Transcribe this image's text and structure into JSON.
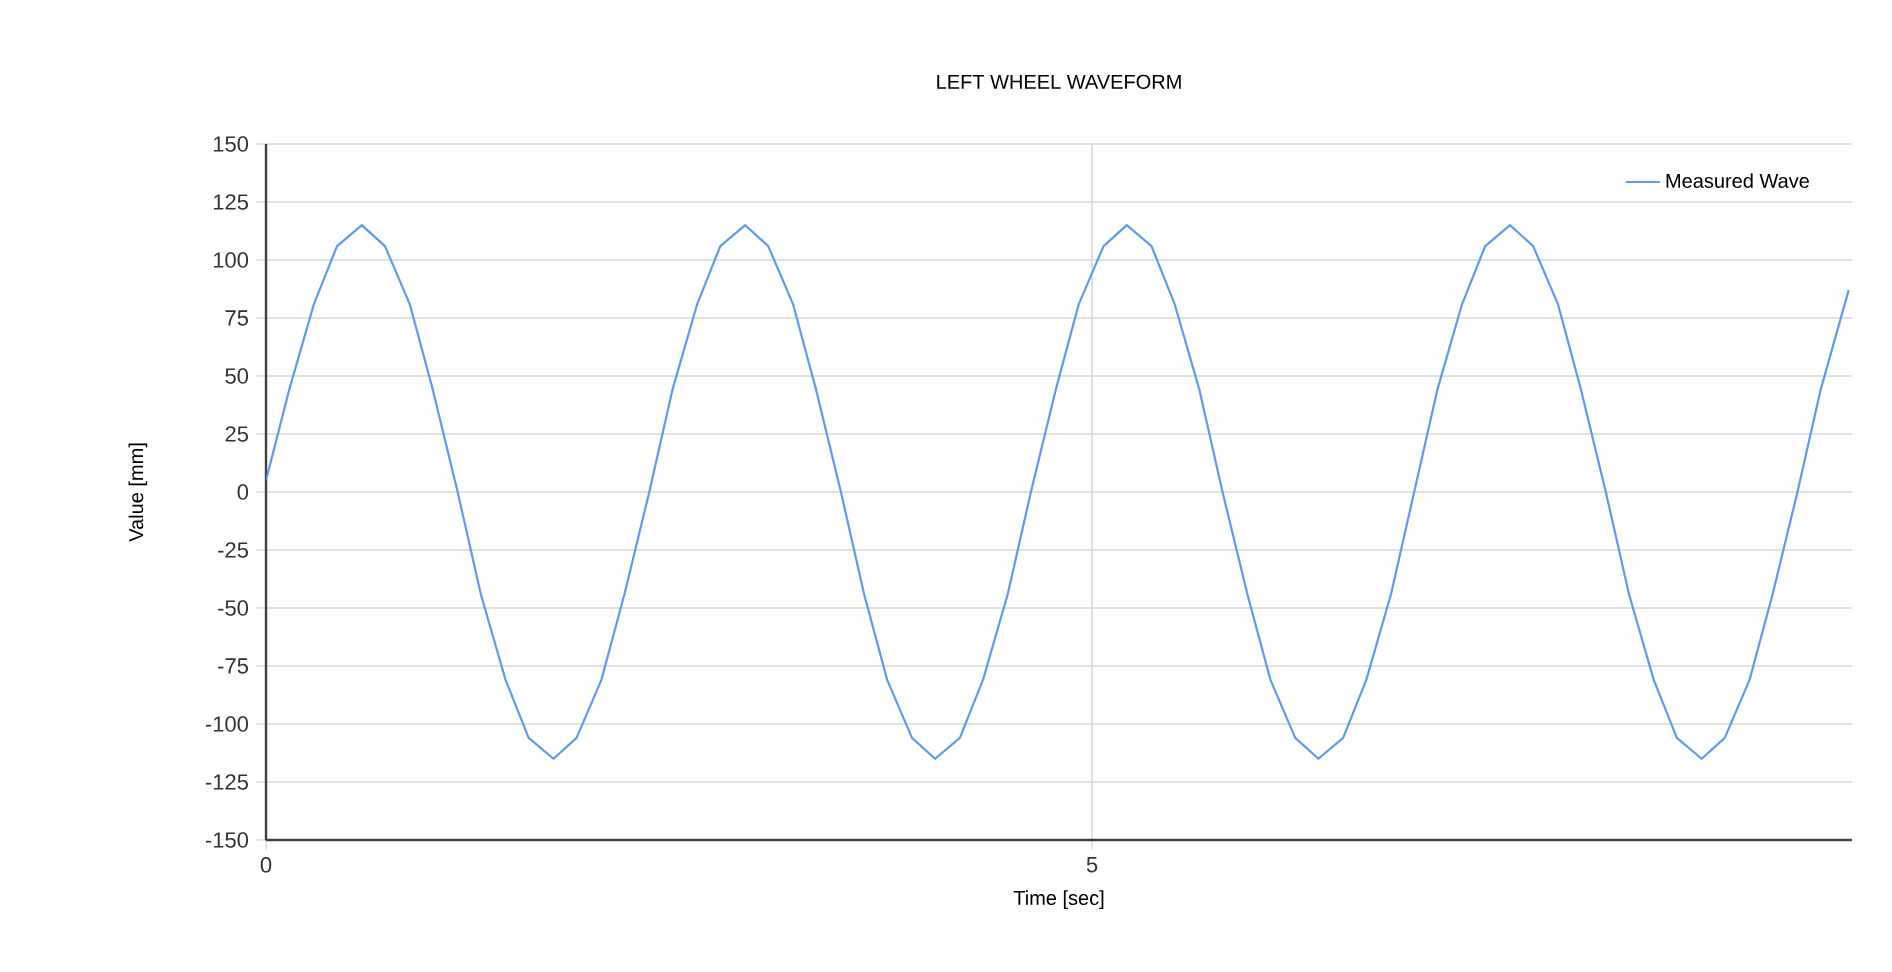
{
  "chart_data": {
    "type": "line",
    "title": "LEFT WHEEL WAVEFORM",
    "xlabel": "Time [sec]",
    "ylabel": "Value [mm]",
    "xlim": [
      0,
      9.6
    ],
    "ylim": [
      -150,
      150
    ],
    "xticks": [
      0,
      5
    ],
    "yticks": [
      -150,
      -125,
      -100,
      -75,
      -50,
      -25,
      0,
      25,
      50,
      75,
      100,
      125,
      150
    ],
    "grid": true,
    "legend": "top right",
    "marker": "none",
    "line_style": "solid",
    "x": [
      0.0,
      0.14,
      0.29,
      0.43,
      0.58,
      0.72,
      0.87,
      1.01,
      1.16,
      1.3,
      1.45,
      1.59,
      1.74,
      1.88,
      2.03,
      2.17,
      2.32,
      2.46,
      2.61,
      2.75,
      2.9,
      3.04,
      3.19,
      3.33,
      3.48,
      3.62,
      3.76,
      3.91,
      4.05,
      4.2,
      4.34,
      4.49,
      4.63,
      4.78,
      4.92,
      5.07,
      5.21,
      5.36,
      5.5,
      5.65,
      5.79,
      5.94,
      6.08,
      6.23,
      6.37,
      6.52,
      6.66,
      6.81,
      6.95,
      7.09,
      7.24,
      7.38,
      7.53,
      7.67,
      7.82,
      7.96,
      8.11,
      8.25,
      8.4,
      8.54,
      8.69,
      8.83,
      8.98,
      9.12,
      9.27,
      9.41,
      9.58
    ],
    "series": [
      {
        "name": "Measured Wave",
        "color": "#5b9bf0",
        "values": [
          5,
          44,
          81,
          106,
          115,
          106,
          81,
          44,
          0,
          -44,
          -81,
          -106,
          -115,
          -106,
          -81,
          -44,
          0,
          44,
          81,
          106,
          115,
          106,
          81,
          44,
          0,
          -44,
          -81,
          -106,
          -115,
          -106,
          -81,
          -44,
          0,
          44,
          81,
          106,
          115,
          106,
          81,
          44,
          0,
          -44,
          -81,
          -106,
          -115,
          -106,
          -81,
          -44,
          0,
          44,
          81,
          106,
          115,
          106,
          81,
          44,
          0,
          -44,
          -81,
          -106,
          -115,
          -106,
          -81,
          -44,
          0,
          44,
          87
        ]
      }
    ]
  }
}
